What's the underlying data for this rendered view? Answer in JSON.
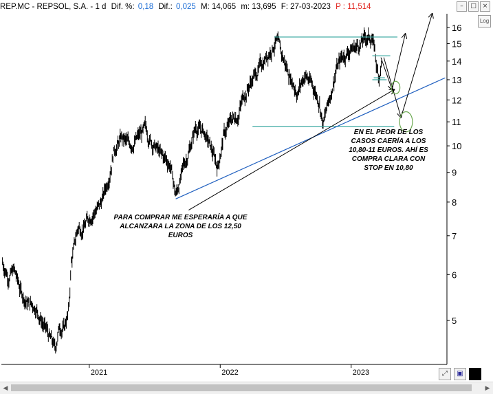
{
  "header": {
    "symbol": "REP.MC - REPSOL, S.A. - 1 d",
    "dif_pct_label": "Dif. %:",
    "dif_pct_value": "0,18",
    "dif_label": "Dif.:",
    "dif_value": "0,025",
    "max": "M: 14,065",
    "min": "m: 13,695",
    "date": "F: 27-03-2023",
    "price": "P : 11,514",
    "colors": {
      "value_blue": "#1f6fd6",
      "price_red": "#e0211b"
    }
  },
  "toolbar": {
    "log_label": "Log",
    "window_icons": [
      "minimize-icon",
      "maximize-icon",
      "close-icon"
    ],
    "bottom_icons": [
      "expand-icon",
      "save-icon",
      "color-square-icon"
    ]
  },
  "chart_data": {
    "type": "line",
    "style": "ohlc-bars",
    "series_color": "#000000",
    "y_scale": "log",
    "ylim": [
      4.2,
      16.8
    ],
    "y_ticks": [
      5,
      6,
      7,
      8,
      9,
      10,
      11,
      12,
      13,
      14,
      15,
      16
    ],
    "x_ticks": [
      "2021",
      "2022",
      "2023"
    ],
    "x_tick_dates": [
      "2021-01-01",
      "2022-01-01",
      "2023-01-01"
    ],
    "xlim": [
      "2020-05-01",
      "2023-09-25"
    ],
    "series": [
      {
        "points": [
          [
            "2020-05-04",
            6.3
          ],
          [
            "2020-05-20",
            6.0
          ],
          [
            "2020-06-05",
            6.1
          ],
          [
            "2020-06-25",
            5.6
          ],
          [
            "2020-07-15",
            5.35
          ],
          [
            "2020-08-05",
            5.3
          ],
          [
            "2020-08-25",
            4.95
          ],
          [
            "2020-09-10",
            4.7
          ],
          [
            "2020-09-28",
            4.45
          ],
          [
            "2020-10-10",
            4.9
          ],
          [
            "2020-10-22",
            4.85
          ],
          [
            "2020-11-05",
            5.2
          ],
          [
            "2020-11-12",
            6.3
          ],
          [
            "2020-11-30",
            7.2
          ],
          [
            "2020-12-20",
            7.3
          ],
          [
            "2021-01-10",
            7.7
          ],
          [
            "2021-02-01",
            7.9
          ],
          [
            "2021-02-20",
            8.6
          ],
          [
            "2021-03-10",
            9.9
          ],
          [
            "2021-04-01",
            10.3
          ],
          [
            "2021-04-20",
            10.0
          ],
          [
            "2021-05-15",
            10.3
          ],
          [
            "2021-06-05",
            10.6
          ],
          [
            "2021-06-25",
            10.2
          ],
          [
            "2021-07-20",
            9.6
          ],
          [
            "2021-08-15",
            9.3
          ],
          [
            "2021-08-30",
            8.2
          ],
          [
            "2021-09-15",
            8.9
          ],
          [
            "2021-10-05",
            9.8
          ],
          [
            "2021-10-25",
            10.8
          ],
          [
            "2021-11-15",
            10.6
          ],
          [
            "2021-12-05",
            9.9
          ],
          [
            "2021-12-25",
            9.2
          ],
          [
            "2022-01-10",
            10.4
          ],
          [
            "2022-01-30",
            11.0
          ],
          [
            "2022-02-20",
            11.4
          ],
          [
            "2022-03-10",
            12.3
          ],
          [
            "2022-03-30",
            13.0
          ],
          [
            "2022-04-20",
            13.6
          ],
          [
            "2022-05-15",
            14.5
          ],
          [
            "2022-06-05",
            15.2
          ],
          [
            "2022-06-25",
            14.1
          ],
          [
            "2022-07-15",
            13.2
          ],
          [
            "2022-08-05",
            12.4
          ],
          [
            "2022-08-25",
            13.3
          ],
          [
            "2022-09-15",
            12.7
          ],
          [
            "2022-10-05",
            12.0
          ],
          [
            "2022-10-15",
            10.9
          ],
          [
            "2022-11-01",
            12.0
          ],
          [
            "2022-11-20",
            13.6
          ],
          [
            "2022-12-10",
            14.3
          ],
          [
            "2022-12-30",
            14.7
          ],
          [
            "2023-01-20",
            14.9
          ],
          [
            "2023-02-10",
            15.3
          ],
          [
            "2023-02-28",
            15.4
          ],
          [
            "2023-03-08",
            14.6
          ],
          [
            "2023-03-15",
            13.4
          ],
          [
            "2023-03-20",
            13.2
          ],
          [
            "2023-03-27",
            14.0
          ]
        ]
      }
    ],
    "horizontal_lines": [
      {
        "y": 15.4,
        "from": "2022-06-01",
        "to": "2023-05-10"
      },
      {
        "y": 14.3,
        "from": "2023-03-01",
        "to": "2023-04-20"
      },
      {
        "y": 13.0,
        "from": "2023-03-01",
        "to": "2023-04-10"
      },
      {
        "y": 13.1,
        "from": "2023-03-05",
        "to": "2023-04-05"
      },
      {
        "y": 10.8,
        "from": "2022-04-01",
        "to": "2023-05-01"
      }
    ],
    "trendlines": [
      {
        "from": [
          "2021-08-30",
          8.1
        ],
        "to": [
          "2023-09-20",
          13.1
        ],
        "color": "#1f5fbf"
      }
    ],
    "arrows": [
      {
        "from": [
          "2021-10-05",
          7.75
        ],
        "to": [
          "2023-05-01",
          12.5
        ]
      },
      {
        "from": [
          "2023-03-25",
          14.2
        ],
        "to": [
          "2023-04-25",
          12.5
        ]
      },
      {
        "from": [
          "2023-04-25",
          12.5
        ],
        "to": [
          "2023-06-01",
          15.6
        ]
      },
      {
        "from": [
          "2023-04-02",
          14.2
        ],
        "to": [
          "2023-05-20",
          11.2
        ]
      },
      {
        "from": [
          "2023-05-20",
          11.2
        ],
        "to": [
          "2023-08-15",
          16.9
        ]
      }
    ],
    "ellipses": [
      {
        "center": [
          "2023-05-05",
          12.6
        ],
        "rx_days": 12,
        "ry_log": 0.025
      },
      {
        "center": [
          "2023-06-03",
          11.0
        ],
        "rx_days": 18,
        "ry_log": 0.04
      }
    ],
    "annotations": [
      {
        "text": "PARA COMPRAR ME ESPERARÍA A QUE\nALCANZARA LA ZONA DE LOS 12,50\nEUROS"
      },
      {
        "text": "EN EL PEOR DE LOS\nCASOS CAERÍA A LOS\n10,80-11 EUROS. AHÍ ES\nCOMPRA CLARA CON\nSTOP EN 10,80"
      }
    ],
    "colors": {
      "level_lines": "#3aa8a0",
      "ellipses": "#6aa84f",
      "arrows": "#000000"
    }
  }
}
